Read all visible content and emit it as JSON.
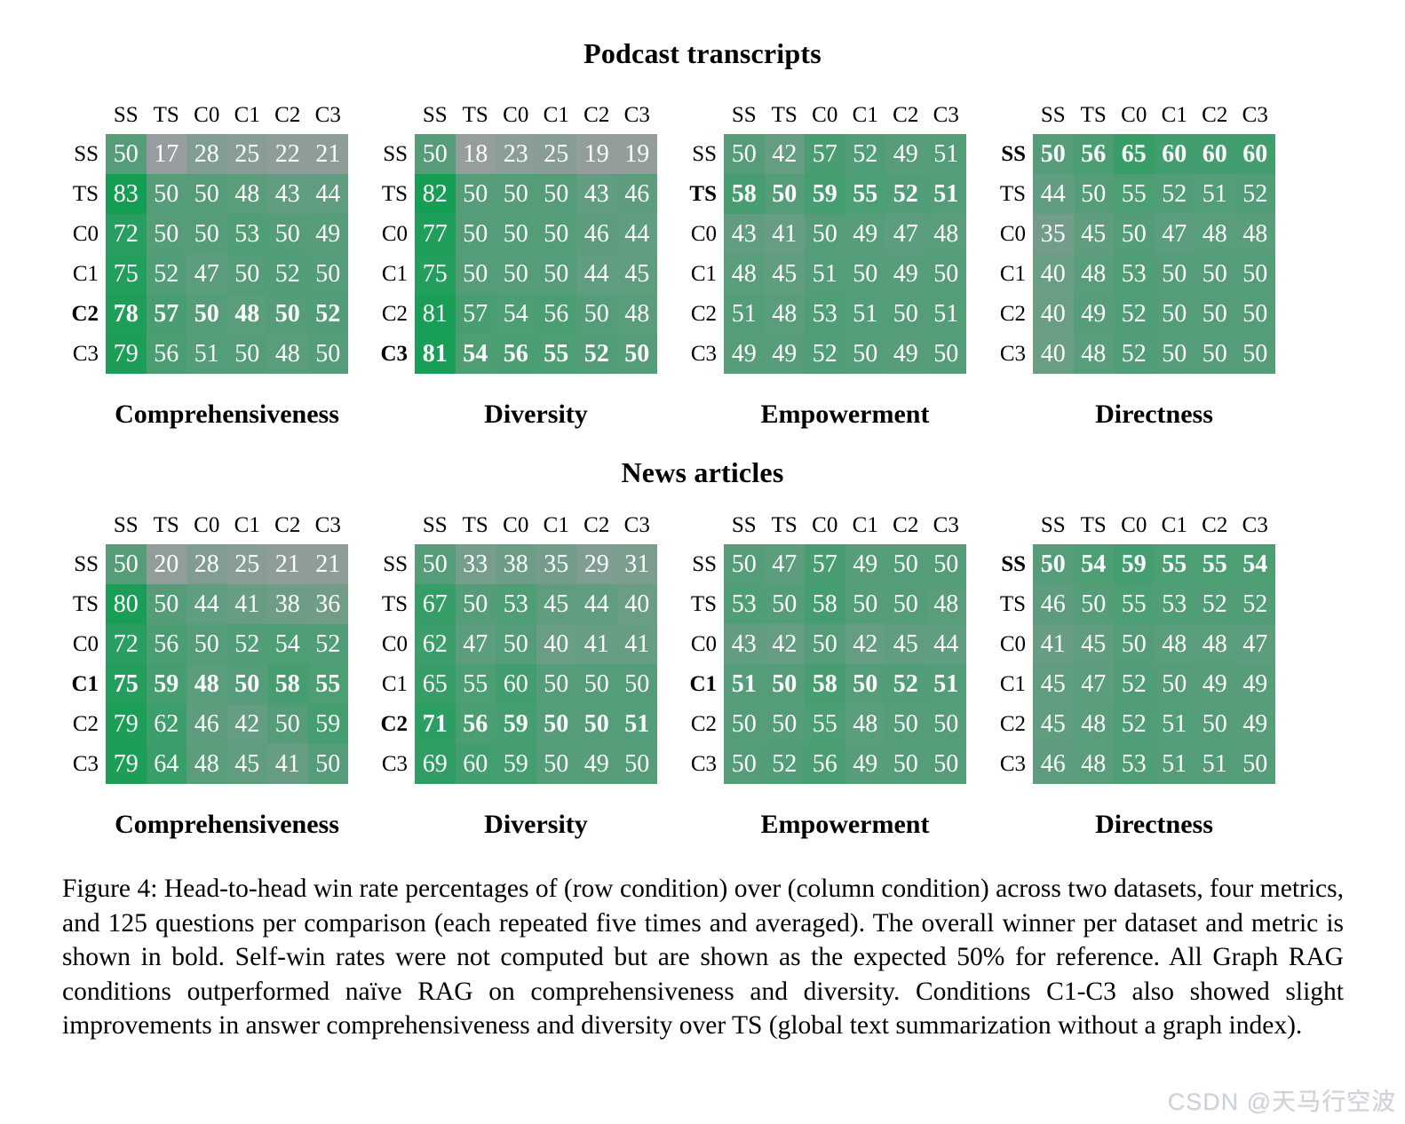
{
  "figure": {
    "section_titles": [
      "Podcast transcripts",
      "News articles"
    ],
    "metric_labels": [
      "Comprehensiveness",
      "Diversity",
      "Empowerment",
      "Directness"
    ],
    "caption": "Figure 4: Head-to-head win rate percentages of (row condition) over (column condition) across two datasets, four metrics, and 125 questions per comparison (each repeated five times and averaged). The overall winner per dataset and metric is shown in bold. Self-win rates were not computed but are shown as the expected 50% for reference. All Graph RAG conditions outperformed naïve RAG on comprehensiveness and diversity. Conditions C1-C3 also showed slight improvements in answer comprehensiveness and diversity over TS (global text summarization without a graph index).",
    "watermark": "CSDN @天马行空波"
  },
  "palette": {
    "low_rgb": [
      155,
      157,
      160
    ],
    "high_rgb": [
      6,
      158,
      76
    ],
    "min_value": 15,
    "max_value": 90,
    "cell_text_color": "#ffffff"
  },
  "chart_data": [
    {
      "type": "heatmap",
      "dataset": "Podcast transcripts",
      "metric": "Comprehensiveness",
      "col_labels": [
        "SS",
        "TS",
        "C0",
        "C1",
        "C2",
        "C3"
      ],
      "row_labels": [
        "SS",
        "TS",
        "C0",
        "C1",
        "C2",
        "C3"
      ],
      "bold_row": "C2",
      "values": [
        [
          50,
          17,
          28,
          25,
          22,
          21
        ],
        [
          83,
          50,
          50,
          48,
          43,
          44
        ],
        [
          72,
          50,
          50,
          53,
          50,
          49
        ],
        [
          75,
          52,
          47,
          50,
          52,
          50
        ],
        [
          78,
          57,
          50,
          48,
          50,
          52
        ],
        [
          79,
          56,
          51,
          50,
          48,
          50
        ]
      ]
    },
    {
      "type": "heatmap",
      "dataset": "Podcast transcripts",
      "metric": "Diversity",
      "col_labels": [
        "SS",
        "TS",
        "C0",
        "C1",
        "C2",
        "C3"
      ],
      "row_labels": [
        "SS",
        "TS",
        "C0",
        "C1",
        "C2",
        "C3"
      ],
      "bold_row": "C3",
      "values": [
        [
          50,
          18,
          23,
          25,
          19,
          19
        ],
        [
          82,
          50,
          50,
          50,
          43,
          46
        ],
        [
          77,
          50,
          50,
          50,
          46,
          44
        ],
        [
          75,
          50,
          50,
          50,
          44,
          45
        ],
        [
          81,
          57,
          54,
          56,
          50,
          48
        ],
        [
          81,
          54,
          56,
          55,
          52,
          50
        ]
      ]
    },
    {
      "type": "heatmap",
      "dataset": "Podcast transcripts",
      "metric": "Empowerment",
      "col_labels": [
        "SS",
        "TS",
        "C0",
        "C1",
        "C2",
        "C3"
      ],
      "row_labels": [
        "SS",
        "TS",
        "C0",
        "C1",
        "C2",
        "C3"
      ],
      "bold_row": "TS",
      "values": [
        [
          50,
          42,
          57,
          52,
          49,
          51
        ],
        [
          58,
          50,
          59,
          55,
          52,
          51
        ],
        [
          43,
          41,
          50,
          49,
          47,
          48
        ],
        [
          48,
          45,
          51,
          50,
          49,
          50
        ],
        [
          51,
          48,
          53,
          51,
          50,
          51
        ],
        [
          49,
          49,
          52,
          50,
          49,
          50
        ]
      ]
    },
    {
      "type": "heatmap",
      "dataset": "Podcast transcripts",
      "metric": "Directness",
      "col_labels": [
        "SS",
        "TS",
        "C0",
        "C1",
        "C2",
        "C3"
      ],
      "row_labels": [
        "SS",
        "TS",
        "C0",
        "C1",
        "C2",
        "C3"
      ],
      "bold_row": "SS",
      "values": [
        [
          50,
          56,
          65,
          60,
          60,
          60
        ],
        [
          44,
          50,
          55,
          52,
          51,
          52
        ],
        [
          35,
          45,
          50,
          47,
          48,
          48
        ],
        [
          40,
          48,
          53,
          50,
          50,
          50
        ],
        [
          40,
          49,
          52,
          50,
          50,
          50
        ],
        [
          40,
          48,
          52,
          50,
          50,
          50
        ]
      ]
    },
    {
      "type": "heatmap",
      "dataset": "News articles",
      "metric": "Comprehensiveness",
      "col_labels": [
        "SS",
        "TS",
        "C0",
        "C1",
        "C2",
        "C3"
      ],
      "row_labels": [
        "SS",
        "TS",
        "C0",
        "C1",
        "C2",
        "C3"
      ],
      "bold_row": "C1",
      "values": [
        [
          50,
          20,
          28,
          25,
          21,
          21
        ],
        [
          80,
          50,
          44,
          41,
          38,
          36
        ],
        [
          72,
          56,
          50,
          52,
          54,
          52
        ],
        [
          75,
          59,
          48,
          50,
          58,
          55
        ],
        [
          79,
          62,
          46,
          42,
          50,
          59
        ],
        [
          79,
          64,
          48,
          45,
          41,
          50
        ]
      ]
    },
    {
      "type": "heatmap",
      "dataset": "News articles",
      "metric": "Diversity",
      "col_labels": [
        "SS",
        "TS",
        "C0",
        "C1",
        "C2",
        "C3"
      ],
      "row_labels": [
        "SS",
        "TS",
        "C0",
        "C1",
        "C2",
        "C3"
      ],
      "bold_row": "C2",
      "values": [
        [
          50,
          33,
          38,
          35,
          29,
          31
        ],
        [
          67,
          50,
          53,
          45,
          44,
          40
        ],
        [
          62,
          47,
          50,
          40,
          41,
          41
        ],
        [
          65,
          55,
          60,
          50,
          50,
          50
        ],
        [
          71,
          56,
          59,
          50,
          50,
          51
        ],
        [
          69,
          60,
          59,
          50,
          49,
          50
        ]
      ]
    },
    {
      "type": "heatmap",
      "dataset": "News articles",
      "metric": "Empowerment",
      "col_labels": [
        "SS",
        "TS",
        "C0",
        "C1",
        "C2",
        "C3"
      ],
      "row_labels": [
        "SS",
        "TS",
        "C0",
        "C1",
        "C2",
        "C3"
      ],
      "bold_row": "C1",
      "values": [
        [
          50,
          47,
          57,
          49,
          50,
          50
        ],
        [
          53,
          50,
          58,
          50,
          50,
          48
        ],
        [
          43,
          42,
          50,
          42,
          45,
          44
        ],
        [
          51,
          50,
          58,
          50,
          52,
          51
        ],
        [
          50,
          50,
          55,
          48,
          50,
          50
        ],
        [
          50,
          52,
          56,
          49,
          50,
          50
        ]
      ]
    },
    {
      "type": "heatmap",
      "dataset": "News articles",
      "metric": "Directness",
      "col_labels": [
        "SS",
        "TS",
        "C0",
        "C1",
        "C2",
        "C3"
      ],
      "row_labels": [
        "SS",
        "TS",
        "C0",
        "C1",
        "C2",
        "C3"
      ],
      "bold_row": "SS",
      "values": [
        [
          50,
          54,
          59,
          55,
          55,
          54
        ],
        [
          46,
          50,
          55,
          53,
          52,
          52
        ],
        [
          41,
          45,
          50,
          48,
          48,
          47
        ],
        [
          45,
          47,
          52,
          50,
          49,
          49
        ],
        [
          45,
          48,
          52,
          51,
          50,
          49
        ],
        [
          46,
          48,
          53,
          51,
          51,
          50
        ]
      ]
    }
  ]
}
